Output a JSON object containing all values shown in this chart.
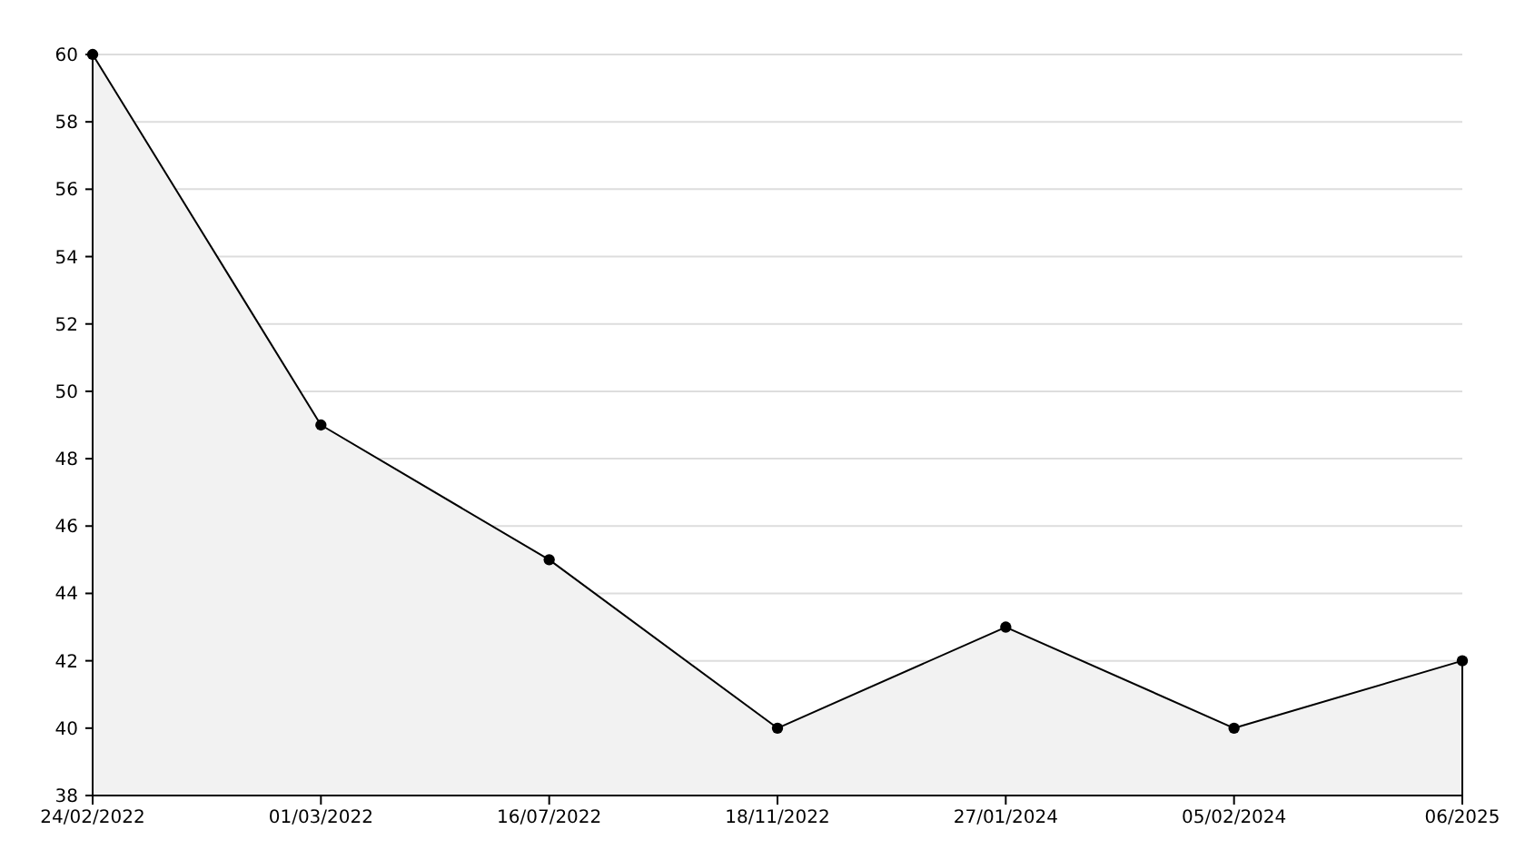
{
  "chart_data": {
    "type": "area",
    "categories": [
      "24/02/2022",
      "01/03/2022",
      "16/07/2022",
      "18/11/2022",
      "27/01/2024",
      "05/02/2024",
      "06/2025"
    ],
    "series": [
      {
        "color": "#000000",
        "values": [
          60,
          49,
          45,
          40,
          43,
          40,
          42
        ]
      }
    ],
    "ylim": [
      38,
      60
    ],
    "yticks": [
      38,
      40,
      42,
      44,
      46,
      48,
      50,
      52,
      54,
      56,
      58,
      60
    ],
    "grid": "y",
    "marker": "circle",
    "line_style": "solid"
  }
}
